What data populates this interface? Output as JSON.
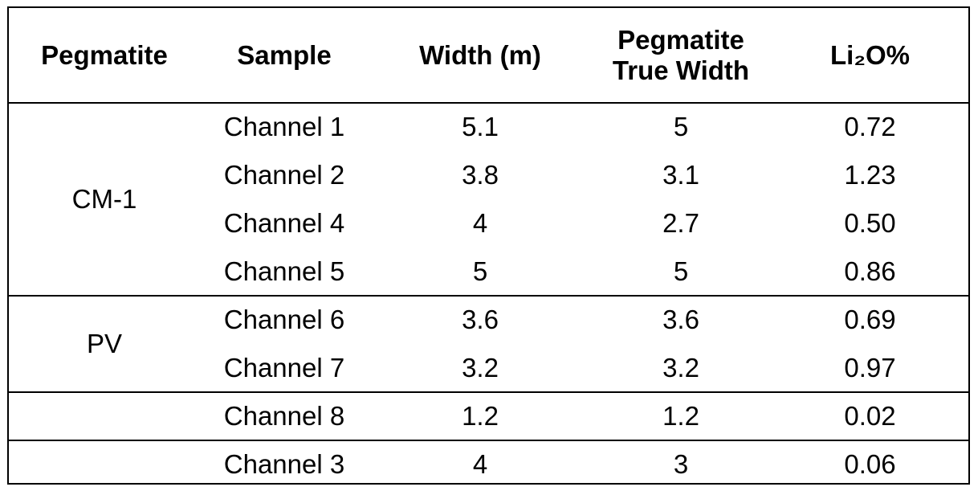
{
  "table": {
    "header": [
      "Pegmatite",
      "Sample",
      "Width (m)",
      "Pegmatite True Width",
      "Li₂O%"
    ],
    "groups": [
      {
        "pegmatite": "CM-1",
        "rows": [
          [
            "Channel 1",
            "5.1",
            "5",
            "0.72"
          ],
          [
            "Channel 2",
            "3.8",
            "3.1",
            "1.23"
          ],
          [
            "Channel 4",
            "4",
            "2.7",
            "0.50"
          ],
          [
            "Channel 5",
            "5",
            "5",
            "0.86"
          ]
        ]
      },
      {
        "pegmatite": "PV",
        "rows": [
          [
            "Channel 6",
            "3.6",
            "3.6",
            "0.69"
          ],
          [
            "Channel 7",
            "3.2",
            "3.2",
            "0.97"
          ]
        ]
      },
      {
        "rows": [
          [
            "Channel 8",
            "1.2",
            "1.2",
            "0.02"
          ]
        ]
      },
      {
        "rows": [
          [
            "Channel 3",
            "4",
            "3",
            "0.06"
          ]
        ]
      }
    ]
  }
}
